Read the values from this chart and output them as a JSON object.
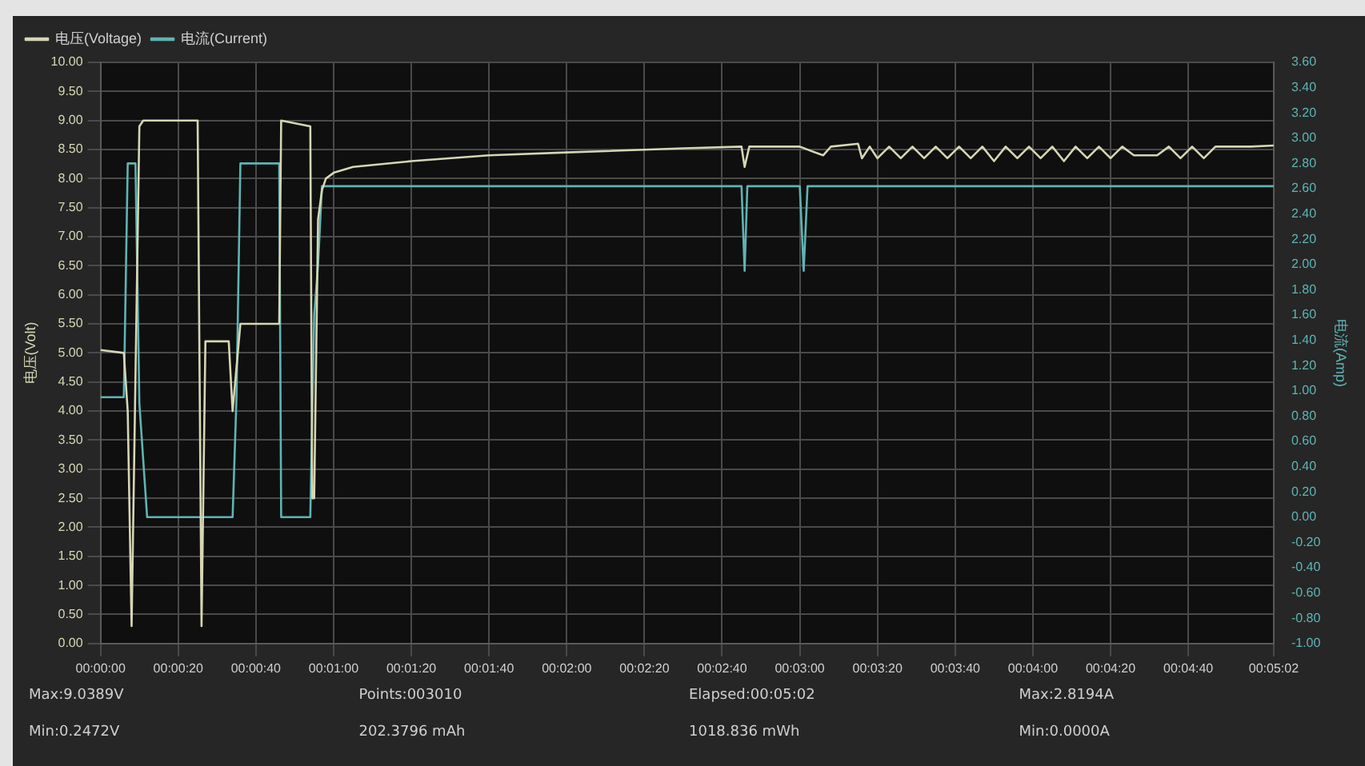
{
  "chart_data": {
    "type": "line",
    "ylabel": "电压(Volt)",
    "y2label": "电流(Amp)",
    "xlim": [
      0,
      302
    ],
    "ylim": [
      0,
      10
    ],
    "y2lim": [
      -1,
      3.6
    ],
    "xticks": [
      {
        "value": 0,
        "label": "00:00:00"
      },
      {
        "value": 20,
        "label": "00:00:20"
      },
      {
        "value": 40,
        "label": "00:00:40"
      },
      {
        "value": 60,
        "label": "00:01:00"
      },
      {
        "value": 80,
        "label": "00:01:20"
      },
      {
        "value": 100,
        "label": "00:01:40"
      },
      {
        "value": 120,
        "label": "00:02:00"
      },
      {
        "value": 140,
        "label": "00:02:20"
      },
      {
        "value": 160,
        "label": "00:02:40"
      },
      {
        "value": 180,
        "label": "00:03:00"
      },
      {
        "value": 200,
        "label": "00:03:20"
      },
      {
        "value": 220,
        "label": "00:03:40"
      },
      {
        "value": 240,
        "label": "00:04:00"
      },
      {
        "value": 260,
        "label": "00:04:20"
      },
      {
        "value": 280,
        "label": "00:04:40"
      },
      {
        "value": 302,
        "label": "00:05:02"
      }
    ],
    "yticks": [
      {
        "value": 0,
        "label": "0.00"
      },
      {
        "value": 0.5,
        "label": "0.50"
      },
      {
        "value": 1,
        "label": "1.00"
      },
      {
        "value": 1.5,
        "label": "1.50"
      },
      {
        "value": 2,
        "label": "2.00"
      },
      {
        "value": 2.5,
        "label": "2.50"
      },
      {
        "value": 3,
        "label": "3.00"
      },
      {
        "value": 3.5,
        "label": "3.50"
      },
      {
        "value": 4,
        "label": "4.00"
      },
      {
        "value": 4.5,
        "label": "4.50"
      },
      {
        "value": 5,
        "label": "5.00"
      },
      {
        "value": 5.5,
        "label": "5.50"
      },
      {
        "value": 6,
        "label": "6.00"
      },
      {
        "value": 6.5,
        "label": "6.50"
      },
      {
        "value": 7,
        "label": "7.00"
      },
      {
        "value": 7.5,
        "label": "7.50"
      },
      {
        "value": 8,
        "label": "8.00"
      },
      {
        "value": 8.5,
        "label": "8.50"
      },
      {
        "value": 9,
        "label": "9.00"
      },
      {
        "value": 9.5,
        "label": "9.50"
      },
      {
        "value": 10,
        "label": "10.00"
      }
    ],
    "y2ticks": [
      {
        "value": -1,
        "label": "-1.00"
      },
      {
        "value": -0.8,
        "label": "-0.80"
      },
      {
        "value": -0.6,
        "label": "-0.60"
      },
      {
        "value": -0.4,
        "label": "-0.40"
      },
      {
        "value": -0.2,
        "label": "-0.20"
      },
      {
        "value": 0,
        "label": "0.00"
      },
      {
        "value": 0.2,
        "label": "0.20"
      },
      {
        "value": 0.4,
        "label": "0.40"
      },
      {
        "value": 0.6,
        "label": "0.60"
      },
      {
        "value": 0.8,
        "label": "0.80"
      },
      {
        "value": 1,
        "label": "1.00"
      },
      {
        "value": 1.2,
        "label": "1.20"
      },
      {
        "value": 1.4,
        "label": "1.40"
      },
      {
        "value": 1.6,
        "label": "1.60"
      },
      {
        "value": 1.8,
        "label": "1.80"
      },
      {
        "value": 2,
        "label": "2.00"
      },
      {
        "value": 2.2,
        "label": "2.20"
      },
      {
        "value": 2.4,
        "label": "2.40"
      },
      {
        "value": 2.6,
        "label": "2.60"
      },
      {
        "value": 2.8,
        "label": "2.80"
      },
      {
        "value": 3,
        "label": "3.00"
      },
      {
        "value": 3.2,
        "label": "3.20"
      },
      {
        "value": 3.4,
        "label": "3.40"
      },
      {
        "value": 3.6,
        "label": "3.60"
      }
    ],
    "grid": true,
    "legend": "top left",
    "marker": "none",
    "line_style": "solid",
    "series": [
      {
        "name": "电压(Voltage)",
        "color": "#d6d6b4",
        "x": [
          0,
          6,
          7,
          8,
          10,
          11,
          25,
          26,
          27,
          33,
          34,
          36,
          46,
          46.5,
          54,
          54.5,
          55,
          56,
          57,
          58,
          60,
          65,
          80,
          100,
          120,
          150,
          165,
          165.8,
          167,
          180,
          186,
          188,
          195,
          196,
          198,
          200,
          203,
          206,
          209,
          212,
          215,
          218,
          221,
          224,
          227,
          230,
          233,
          236,
          239,
          242,
          245,
          248,
          251,
          254,
          257,
          260,
          263,
          266,
          269,
          272,
          275,
          278,
          281,
          284,
          287,
          290,
          293,
          296,
          302
        ],
        "values": [
          5.05,
          5.0,
          4.0,
          0.3,
          8.9,
          9.0,
          9.0,
          0.3,
          5.2,
          5.2,
          4.0,
          5.5,
          5.5,
          9.0,
          8.9,
          2.5,
          2.5,
          7.3,
          7.8,
          8.0,
          8.1,
          8.2,
          8.3,
          8.4,
          8.45,
          8.52,
          8.55,
          8.2,
          8.55,
          8.55,
          8.4,
          8.55,
          8.6,
          8.35,
          8.55,
          8.35,
          8.55,
          8.35,
          8.55,
          8.35,
          8.55,
          8.35,
          8.55,
          8.35,
          8.55,
          8.3,
          8.55,
          8.35,
          8.55,
          8.35,
          8.55,
          8.3,
          8.55,
          8.35,
          8.55,
          8.35,
          8.55,
          8.4,
          8.4,
          8.4,
          8.55,
          8.35,
          8.55,
          8.35,
          8.55,
          8.55,
          8.55,
          8.55,
          8.57
        ]
      },
      {
        "name": "电流(Current)",
        "color": "#5fb4b4",
        "axis": "y2",
        "x": [
          0,
          6,
          7,
          9,
          10,
          12,
          34,
          35,
          36,
          46,
          46.5,
          54,
          55,
          56,
          57,
          165,
          165.8,
          166.5,
          180,
          181,
          182,
          302
        ],
        "values": [
          0.95,
          0.95,
          2.8,
          2.8,
          0.9,
          0.0,
          0.0,
          0.95,
          2.8,
          2.8,
          0.0,
          0.0,
          1.6,
          2.0,
          2.62,
          2.62,
          1.95,
          2.62,
          2.62,
          1.95,
          2.62,
          2.62
        ]
      }
    ],
    "annotations": [
      "Max:9.0389V",
      "Min:0.2472V",
      "Points:003010",
      "202.3796 mAh",
      "Elapsed:00:05:02",
      "1018.836 mWh",
      "Max:2.8194A",
      "Min:0.0000A"
    ]
  }
}
